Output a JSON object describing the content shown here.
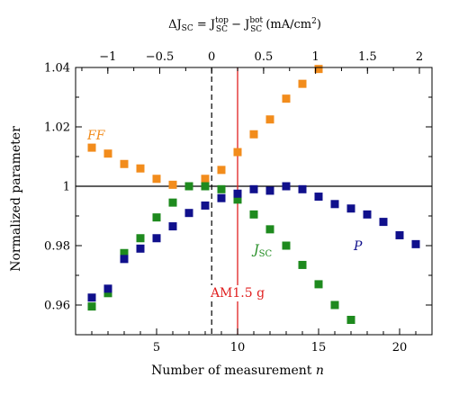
{
  "chart_data": {
    "type": "scatter",
    "xlabel": "Number of measurement n",
    "ylabel": "Normalized parameter",
    "top_axis_label": "ΔJSC = JSC^top − JSC^bot (mA/cm²)",
    "xlim": [
      0,
      22
    ],
    "ylim": [
      0.95,
      1.04
    ],
    "x_ticks": [
      5,
      10,
      15,
      20
    ],
    "y_ticks": [
      0.96,
      0.98,
      1,
      1.02,
      1.04
    ],
    "y_tick_labels": [
      "0.96",
      "0.98",
      "1",
      "1.02",
      "1.04"
    ],
    "top_ticks": [
      "−1",
      "−0.5",
      "0",
      "0.5",
      "1",
      "1.5",
      "2"
    ],
    "reference_line_y": 1,
    "dashed_line_x": 8.4,
    "am15_line_x": 10,
    "am15_label": "AM1.5 g",
    "colors": {
      "FF": "#f28c1c",
      "JSC": "#1e8a1e",
      "P": "#10108c",
      "am15": "#e02020"
    },
    "series": [
      {
        "name": "FF",
        "x": [
          1,
          2,
          3,
          4,
          5,
          6,
          7,
          8,
          9,
          10,
          11,
          12,
          13,
          14,
          15
        ],
        "values": [
          1.013,
          1.011,
          1.0075,
          1.006,
          1.0025,
          1.0005,
          1.0,
          1.0025,
          1.0055,
          1.0115,
          1.0175,
          1.0225,
          1.0295,
          1.0345,
          1.0395
        ]
      },
      {
        "name": "JSC",
        "x": [
          1,
          2,
          3,
          4,
          5,
          6,
          7,
          8,
          9,
          10,
          11,
          12,
          13,
          14,
          15,
          16,
          17
        ],
        "values": [
          0.9595,
          0.964,
          0.9775,
          0.9825,
          0.9895,
          0.9945,
          1.0,
          1.0,
          0.999,
          0.9955,
          0.9905,
          0.9855,
          0.98,
          0.9735,
          0.967,
          0.96,
          0.955
        ]
      },
      {
        "name": "P",
        "x": [
          1,
          2,
          3,
          4,
          5,
          6,
          7,
          8,
          9,
          10,
          11,
          12,
          13,
          14,
          15,
          16,
          17,
          18,
          19,
          20,
          21
        ],
        "values": [
          0.9625,
          0.9655,
          0.9755,
          0.979,
          0.9825,
          0.9865,
          0.991,
          0.9935,
          0.996,
          0.9975,
          0.999,
          0.9985,
          1.0,
          0.999,
          0.9965,
          0.994,
          0.9925,
          0.9905,
          0.988,
          0.9835,
          0.9805
        ]
      }
    ]
  }
}
